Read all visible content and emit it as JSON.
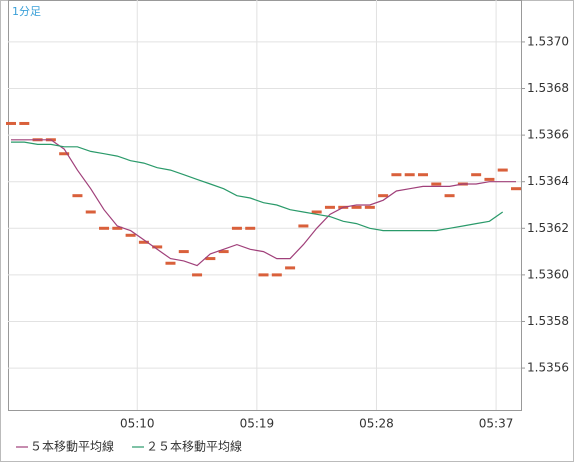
{
  "chart_data": {
    "type": "line",
    "title": "1分足",
    "categories": [
      null,
      null,
      null,
      null,
      null,
      null,
      null,
      null,
      null,
      null,
      "05:10",
      null,
      null,
      null,
      null,
      null,
      null,
      null,
      null,
      "05:19",
      null,
      null,
      null,
      null,
      null,
      null,
      null,
      null,
      "05:28",
      null,
      null,
      null,
      null,
      null,
      null,
      null,
      null,
      "05:37",
      null
    ],
    "series": [
      {
        "marker": "dash",
        "color": "#d9603b",
        "values": [
          1.53665,
          1.53665,
          1.53658,
          1.53658,
          1.53652,
          1.53634,
          1.53627,
          1.5362,
          1.5362,
          1.53617,
          1.53614,
          1.53612,
          1.53605,
          1.5361,
          1.536,
          1.53607,
          1.5361,
          1.5362,
          1.5362,
          1.536,
          1.536,
          1.53603,
          1.53621,
          1.53627,
          1.53629,
          1.53629,
          1.53629,
          1.53629,
          1.53634,
          1.53643,
          1.53643,
          1.53643,
          1.53639,
          1.53634,
          1.53639,
          1.53643,
          1.53641,
          1.53645,
          1.53637
        ]
      },
      {
        "name": "５本移動平均線",
        "color": "#a0407a",
        "values": [
          1.53658,
          1.53658,
          1.53658,
          1.53658,
          1.53654,
          1.53645,
          1.53637,
          1.53628,
          1.53621,
          1.53619,
          1.53615,
          1.53611,
          1.53607,
          1.53606,
          1.53604,
          1.53609,
          1.53611,
          1.53613,
          1.53611,
          1.5361,
          1.53607,
          1.53607,
          1.53613,
          1.5362,
          1.53626,
          1.53629,
          1.5363,
          1.5363,
          1.53632,
          1.53636,
          1.53637,
          1.53638,
          1.53638,
          1.53638,
          1.53639,
          1.53639,
          1.5364,
          1.5364,
          1.5364
        ]
      },
      {
        "name": "２５本移動平均線",
        "color": "#2a9a6a",
        "values": [
          1.53657,
          1.53657,
          1.53656,
          1.53656,
          1.53655,
          1.53655,
          1.53653,
          1.53652,
          1.53651,
          1.53649,
          1.53648,
          1.53646,
          1.53645,
          1.53643,
          1.53641,
          1.53639,
          1.53637,
          1.53634,
          1.53633,
          1.53631,
          1.5363,
          1.53628,
          1.53627,
          1.53626,
          1.53625,
          1.53623,
          1.53622,
          1.5362,
          1.53619,
          1.53619,
          1.53619,
          1.53619,
          1.53619,
          1.5362,
          1.53621,
          1.53622,
          1.53623,
          1.53627,
          null
        ]
      }
    ],
    "ylim": [
      1.53542,
      1.53718
    ],
    "yticks": [
      1.5356,
      1.5358,
      {
        "value": 1.536,
        "label": "1.5360"
      },
      1.5362,
      1.5364,
      1.5366,
      1.5368,
      {
        "value": 1.537,
        "label": "1.5370"
      }
    ],
    "grid": true
  }
}
